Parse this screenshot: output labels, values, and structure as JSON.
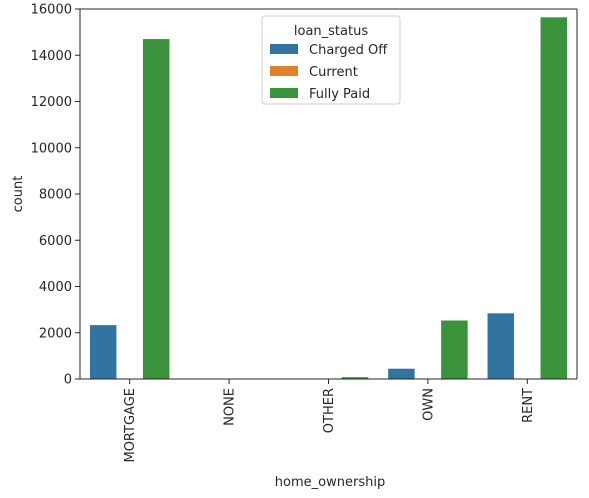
{
  "chart_data": {
    "type": "bar",
    "title": "",
    "xlabel": "home_ownership",
    "ylabel": "count",
    "categories": [
      "MORTGAGE",
      "NONE",
      "OTHER",
      "OWN",
      "RENT"
    ],
    "ylim": [
      0,
      16000
    ],
    "yticks": [
      0,
      2000,
      4000,
      6000,
      8000,
      10000,
      12000,
      14000,
      16000
    ],
    "grid": false,
    "legend": {
      "title": "loan_status",
      "placement": "top-center"
    },
    "series": [
      {
        "name": "Charged Off",
        "color": "#3274a1",
        "values": [
          2330,
          1,
          18,
          445,
          2840
        ]
      },
      {
        "name": "Current",
        "color": "#e1812c",
        "values": [
          0,
          0,
          0,
          0,
          0
        ]
      },
      {
        "name": "Fully Paid",
        "color": "#3a923a",
        "values": [
          14700,
          3,
          80,
          2530,
          15640
        ]
      }
    ]
  }
}
